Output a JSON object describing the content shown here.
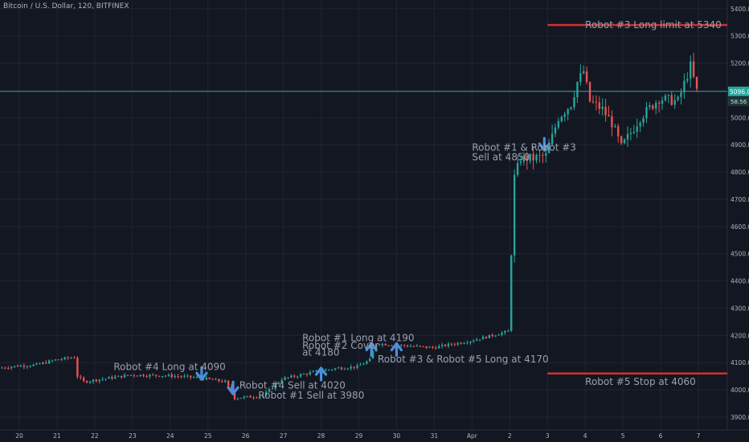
{
  "header": {
    "title": "Bitcoin / U.S. Dollar, 120, BITFINEX"
  },
  "colors": {
    "background": "#131722",
    "grid": "#1f2433",
    "up": "#26a69a",
    "down": "#ef5350",
    "hline": "#d32f2f",
    "current_line": "#26a69a",
    "arrow": "#4a90d9",
    "annotation": "#9aa0ad",
    "tick": "#b2b5be"
  },
  "price_labels": {
    "current": "5096.0",
    "countdown": "58:56"
  },
  "chart_data": {
    "type": "candlestick",
    "title": "Bitcoin / U.S. Dollar, 120, BITFINEX",
    "ylim": [
      3860,
      5420
    ],
    "xlim": [
      19.5,
      7.9
    ],
    "x_ticks": [
      "20",
      "21",
      "22",
      "23",
      "24",
      "25",
      "26",
      "27",
      "28",
      "29",
      "30",
      "31",
      "Apr",
      "2",
      "3",
      "4",
      "5",
      "6",
      "7"
    ],
    "y_ticks": [
      "3900.0",
      "4000.0",
      "4100.0",
      "4200.0",
      "4300.0",
      "4400.0",
      "4500.0",
      "4600.0",
      "4700.0",
      "4800.0",
      "4900.0",
      "5000.0",
      "5100.0",
      "5200.0",
      "5300.0",
      "5400.0"
    ],
    "anchors": [
      [
        "Mar 19 12:00",
        4080
      ],
      [
        "Mar 20 00:00",
        4088
      ],
      [
        "Mar 20 12:00",
        4092
      ],
      [
        "Mar 21 00:00",
        4110
      ],
      [
        "Mar 21 12:00",
        4120
      ],
      [
        "Mar 21 14:00",
        4050
      ],
      [
        "Mar 21 18:00",
        4030
      ],
      [
        "Mar 22 00:00",
        4035
      ],
      [
        "Mar 23 00:00",
        4055
      ],
      [
        "Mar 24 00:00",
        4052
      ],
      [
        "Mar 24 18:00",
        4045
      ],
      [
        "Mar 25 00:00",
        4040
      ],
      [
        "Mar 25 12:00",
        4030
      ],
      [
        "Mar 25 18:00",
        3970
      ],
      [
        "Mar 26 12:00",
        3978
      ],
      [
        "Mar 27 00:00",
        4040
      ],
      [
        "Mar 28 00:00",
        4070
      ],
      [
        "Mar 28 12:00",
        4080
      ],
      [
        "Mar 29 00:00",
        4085
      ],
      [
        "Mar 29 08:00",
        4110
      ],
      [
        "Mar 29 12:00",
        4170
      ],
      [
        "Mar 30 00:00",
        4165
      ],
      [
        "Mar 31 00:00",
        4155
      ],
      [
        "Apr 1 00:00",
        4180
      ],
      [
        "Apr 2 00:00",
        4215
      ],
      [
        "Apr 2 04:00",
        4780
      ],
      [
        "Apr 2 08:00",
        4850
      ],
      [
        "Apr 2 16:00",
        4850
      ],
      [
        "Apr 3 00:00",
        4860
      ],
      [
        "Apr 3 08:00",
        5000
      ],
      [
        "Apr 3 16:00",
        5050
      ],
      [
        "Apr 3 20:00",
        5130
      ],
      [
        "Apr 4 00:00",
        5170
      ],
      [
        "Apr 4 04:00",
        5060
      ],
      [
        "Apr 4 12:00",
        5030
      ],
      [
        "Apr 4 18:00",
        4980
      ],
      [
        "Apr 5 00:00",
        4890
      ],
      [
        "Apr 5 12:00",
        5000
      ],
      [
        "Apr 6 00:00",
        5070
      ],
      [
        "Apr 6 12:00",
        5060
      ],
      [
        "Apr 6 20:00",
        5190
      ],
      [
        "Apr 7 00:00",
        5096
      ]
    ],
    "horizontal_lines": [
      {
        "price": 5340,
        "from": "Apr 3 00:00",
        "color": "#d32f2f"
      },
      {
        "price": 4060,
        "from": "Apr 3 00:00",
        "color": "#d32f2f"
      },
      {
        "price": 5096,
        "from": "start",
        "color": "#26a69a"
      }
    ],
    "arrows": [
      {
        "direction": "down",
        "at": "Mar 24 20:00",
        "price": 4038
      },
      {
        "direction": "down",
        "at": "Mar 25 16:00",
        "price": 3985
      },
      {
        "direction": "up",
        "at": "Mar 28 00:00",
        "price": 4080
      },
      {
        "direction": "up",
        "at": "Mar 29 08:00",
        "price": 4170
      },
      {
        "direction": "up",
        "at": "Mar 30 00:00",
        "price": 4170
      },
      {
        "direction": "down",
        "at": "Apr 2 22:00",
        "price": 4880
      }
    ],
    "annotations": [
      {
        "text": "Robot #3 Long limit at 5340",
        "at": "Apr 4 00:00",
        "price": 5340
      },
      {
        "text": "Robot #1 & Robot #3",
        "at": "Apr 1 00:00",
        "price": 4890
      },
      {
        "text": "Sell at 4850",
        "at": "Apr 1 00:00",
        "price": 4855
      },
      {
        "text": "Robot #1 Long at 4190",
        "at": "Mar 27 12:00",
        "price": 4190
      },
      {
        "text": "Robot #2 Cover",
        "at": "Mar 27 12:00",
        "price": 4162
      },
      {
        "text": "at 4180",
        "at": "Mar 27 12:00",
        "price": 4137
      },
      {
        "text": "Robot #4 Long at 4090",
        "at": "Mar 22 12:00",
        "price": 4085
      },
      {
        "text": "Robot #3 & Robot #5 Long at 4170",
        "at": "Mar 29 12:00",
        "price": 4112
      },
      {
        "text": "Robot #4 Sell at 4020",
        "at": "Mar 25 20:00",
        "price": 4016
      },
      {
        "text": "Robot #5 Stop at 4060",
        "at": "Apr 4 00:00",
        "price": 4030
      },
      {
        "text": "Robot #1 Sell at 3980",
        "at": "Mar 26 08:00",
        "price": 3980
      }
    ]
  }
}
